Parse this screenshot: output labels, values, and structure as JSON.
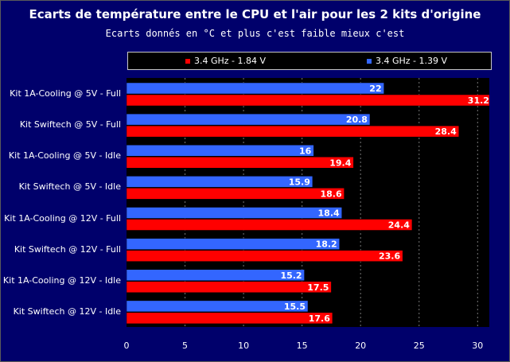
{
  "chart_data": {
    "type": "bar",
    "orientation": "horizontal",
    "title": "Ecarts de température entre le CPU et l'air pour les 2 kits d'origine",
    "subtitle": "Ecarts donnés en °C et plus c'est faible mieux c'est",
    "categories": [
      "Kit 1A-Cooling @ 5V - Full",
      "Kit Swiftech @ 5V - Full",
      "Kit 1A-Cooling @ 5V - Idle",
      "Kit Swiftech @ 5V - Idle",
      "Kit 1A-Cooling @ 12V - Full",
      "Kit Swiftech @ 12V - Full",
      "Kit 1A-Cooling @ 12V - Idle",
      "Kit Swiftech @ 12V - Idle"
    ],
    "series": [
      {
        "name": "3.4 GHz - 1.84 V",
        "color": "#ff0000",
        "values": [
          31.2,
          28.4,
          19.4,
          18.6,
          24.4,
          23.6,
          17.5,
          17.6
        ]
      },
      {
        "name": "3.4 GHz - 1.39 V",
        "color": "#3366ff",
        "values": [
          22,
          20.8,
          16,
          15.9,
          18.4,
          18.2,
          15.2,
          15.5
        ]
      }
    ],
    "xlim": [
      0,
      31
    ],
    "xticks": [
      "0",
      "5",
      "10",
      "15",
      "20",
      "25",
      "30"
    ],
    "grid": true,
    "legend_position": "top"
  }
}
